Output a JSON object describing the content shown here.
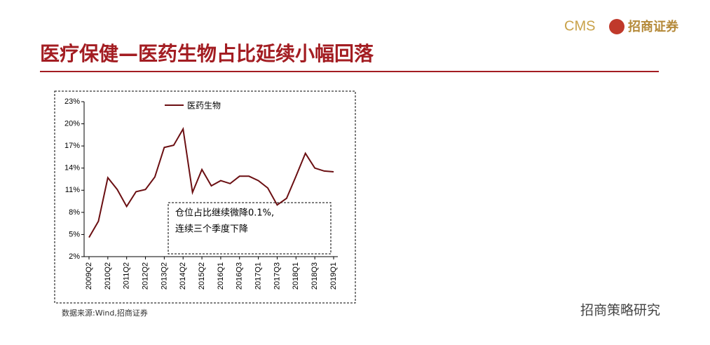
{
  "brand": {
    "code": "CMS",
    "name": "招商证券"
  },
  "chart_data": {
    "type": "line",
    "title": "医疗保健—医药生物占比延续小幅回落",
    "categories": [
      "2009Q2",
      null,
      "2010Q2",
      null,
      "2011Q2",
      null,
      "2012Q2",
      null,
      "2013Q2",
      null,
      "2014Q2",
      null,
      "2015Q2",
      null,
      "2016Q1",
      null,
      "2016Q3",
      null,
      "2017Q1",
      null,
      "2017Q3",
      null,
      "2018Q1",
      null,
      "2018Q3",
      null,
      "2019Q1"
    ],
    "series": [
      {
        "name": "医药生物",
        "color": "#6b0f12",
        "values": [
          4.6,
          6.8,
          12.7,
          11.1,
          8.8,
          10.8,
          11.1,
          12.8,
          16.8,
          17.1,
          19.3,
          10.7,
          13.8,
          11.6,
          12.3,
          11.9,
          12.9,
          12.9,
          12.3,
          11.3,
          9.0,
          9.9,
          12.9,
          16.0,
          14.0,
          13.6,
          13.5
        ]
      }
    ],
    "ylim": [
      2,
      23
    ],
    "yticks": [
      {
        "value": 2,
        "label": "2%"
      },
      {
        "value": 5,
        "label": "5%"
      },
      {
        "value": 8,
        "label": "8%"
      },
      {
        "value": 11,
        "label": "11%"
      },
      {
        "value": 14,
        "label": "14%"
      },
      {
        "value": 17,
        "label": "17%"
      },
      {
        "value": 20,
        "label": "20%"
      },
      {
        "value": 23,
        "label": "23%"
      }
    ],
    "annotation": [
      "仓位占比继续微降0.1%,",
      "连续三个季度下降"
    ],
    "source": "数据来源:Wind,招商证券"
  },
  "watermark": "招商策略研究"
}
